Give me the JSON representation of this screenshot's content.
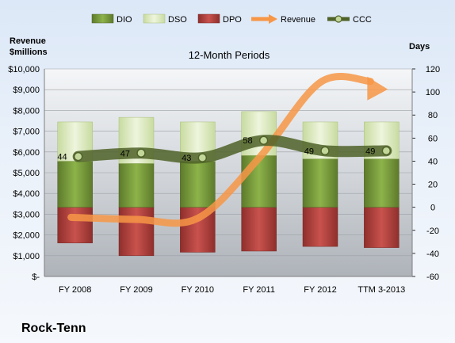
{
  "company": "Rock-Tenn",
  "chart_data": {
    "type": "bar",
    "title": "12-Month Periods",
    "left_axis_title": [
      "Revenue",
      "$millions"
    ],
    "right_axis_title": "Days",
    "categories": [
      "FY 2008",
      "FY 2009",
      "FY 2010",
      "FY 2011",
      "FY 2012",
      "TTM 3-2013"
    ],
    "left_axis": {
      "range": [
        0,
        10000
      ],
      "tick_labels": [
        "$-",
        "$1,000",
        "$2,000",
        "$3,000",
        "$4,000",
        "$5,000",
        "$6,000",
        "$7,000",
        "$8,000",
        "$9,000",
        "$10,000"
      ]
    },
    "right_axis": {
      "range": [
        -60,
        120
      ],
      "tick_labels": [
        "-60",
        "-40",
        "-20",
        "0",
        "20",
        "40",
        "60",
        "80",
        "100",
        "120"
      ]
    },
    "legend_position": "top",
    "series": [
      {
        "name": "DIO",
        "axis": "right",
        "style": "bar",
        "color": "#76933c",
        "values": [
          40,
          38,
          40,
          45,
          42,
          42
        ]
      },
      {
        "name": "DSO",
        "axis": "right",
        "style": "bar-stacked",
        "color": "#d8e4bc",
        "values": [
          34,
          40,
          34,
          38,
          32,
          32
        ]
      },
      {
        "name": "DPO",
        "axis": "right",
        "style": "bar-negative",
        "color": "#c0504d",
        "values": [
          -31,
          -42,
          -39,
          -38,
          -34,
          -35
        ]
      },
      {
        "name": "Revenue",
        "axis": "left",
        "style": "arrow-line",
        "color": "#f79646",
        "values": [
          2850,
          2750,
          2800,
          5700,
          9350,
          9400
        ]
      },
      {
        "name": "CCC",
        "axis": "right",
        "style": "line-markers",
        "color": "#4f6228",
        "values": [
          44,
          47,
          43,
          58,
          49,
          49
        ]
      }
    ],
    "ccc_labels": [
      "44",
      "47",
      "43",
      "58",
      "49",
      "49"
    ]
  }
}
